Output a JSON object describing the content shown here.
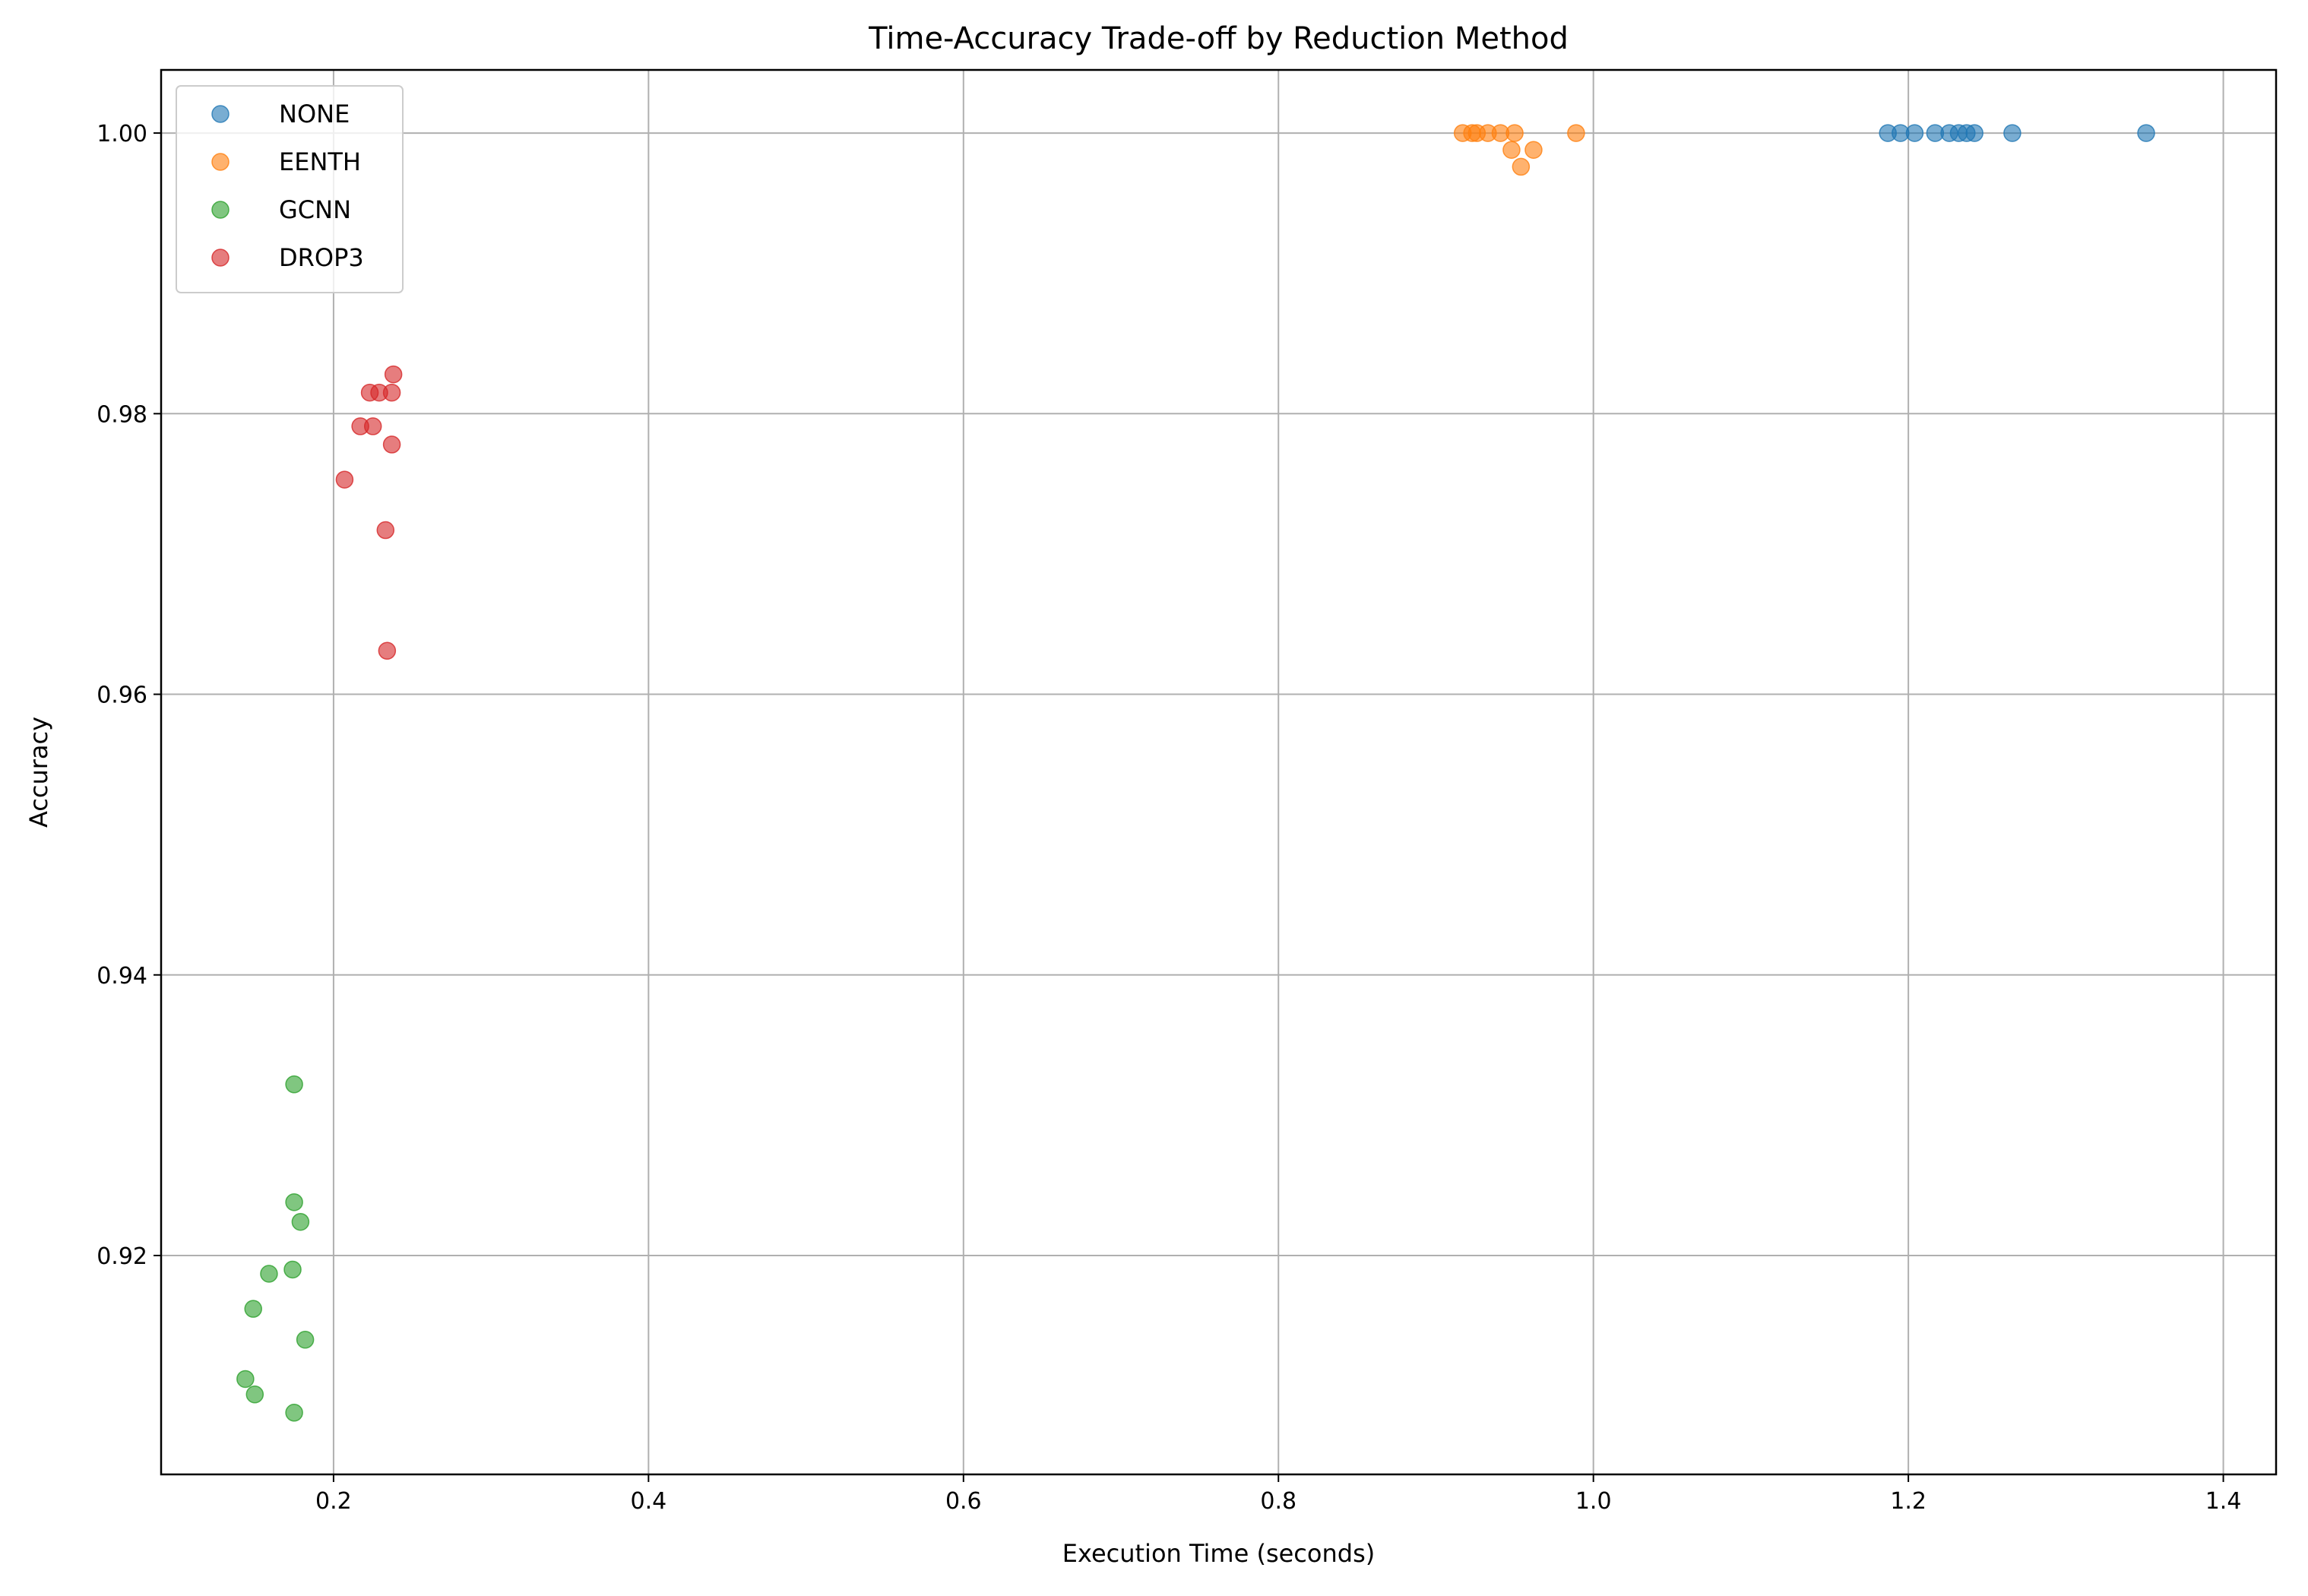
{
  "chart_data": {
    "type": "scatter",
    "title": "Time-Accuracy Trade-off by Reduction Method",
    "xlabel": "Execution Time (seconds)",
    "ylabel": "Accuracy",
    "xlim": [
      0.0905,
      1.4335
    ],
    "ylim": [
      0.9044,
      1.0045
    ],
    "xticks": [
      0.2,
      0.4,
      0.6,
      0.8,
      1.0,
      1.2,
      1.4
    ],
    "xtick_labels": [
      "0.2",
      "0.4",
      "0.6",
      "0.8",
      "1.0",
      "1.2",
      "1.4"
    ],
    "yticks": [
      0.92,
      0.94,
      0.96,
      0.98,
      1.0
    ],
    "ytick_labels": [
      "0.92",
      "0.94",
      "0.96",
      "0.98",
      "1.00"
    ],
    "grid": true,
    "legend_position": "top-left",
    "series": [
      {
        "name": "NONE",
        "color": "#1f77b4",
        "points": [
          {
            "x": 1.187,
            "y": 1.0
          },
          {
            "x": 1.195,
            "y": 1.0
          },
          {
            "x": 1.204,
            "y": 1.0
          },
          {
            "x": 1.217,
            "y": 1.0
          },
          {
            "x": 1.226,
            "y": 1.0
          },
          {
            "x": 1.232,
            "y": 1.0
          },
          {
            "x": 1.237,
            "y": 1.0
          },
          {
            "x": 1.242,
            "y": 1.0
          },
          {
            "x": 1.266,
            "y": 1.0
          },
          {
            "x": 1.351,
            "y": 1.0
          }
        ]
      },
      {
        "name": "EENTH",
        "color": "#ff7f0e",
        "points": [
          {
            "x": 0.917,
            "y": 1.0
          },
          {
            "x": 0.923,
            "y": 1.0
          },
          {
            "x": 0.926,
            "y": 1.0
          },
          {
            "x": 0.933,
            "y": 1.0
          },
          {
            "x": 0.941,
            "y": 1.0
          },
          {
            "x": 0.95,
            "y": 1.0
          },
          {
            "x": 0.948,
            "y": 0.9988
          },
          {
            "x": 0.962,
            "y": 0.9988
          },
          {
            "x": 0.954,
            "y": 0.9976
          },
          {
            "x": 0.989,
            "y": 1.0
          }
        ]
      },
      {
        "name": "GCNN",
        "color": "#2ca02c",
        "points": [
          {
            "x": 0.175,
            "y": 0.9322
          },
          {
            "x": 0.175,
            "y": 0.9238
          },
          {
            "x": 0.179,
            "y": 0.9224
          },
          {
            "x": 0.159,
            "y": 0.9187
          },
          {
            "x": 0.174,
            "y": 0.919
          },
          {
            "x": 0.149,
            "y": 0.9162
          },
          {
            "x": 0.182,
            "y": 0.914
          },
          {
            "x": 0.144,
            "y": 0.9112
          },
          {
            "x": 0.15,
            "y": 0.9101
          },
          {
            "x": 0.175,
            "y": 0.9088
          }
        ]
      },
      {
        "name": "DROP3",
        "color": "#d62728",
        "points": [
          {
            "x": 0.238,
            "y": 0.9828
          },
          {
            "x": 0.223,
            "y": 0.9815
          },
          {
            "x": 0.229,
            "y": 0.9815
          },
          {
            "x": 0.237,
            "y": 0.9815
          },
          {
            "x": 0.217,
            "y": 0.9791
          },
          {
            "x": 0.225,
            "y": 0.9791
          },
          {
            "x": 0.237,
            "y": 0.9778
          },
          {
            "x": 0.207,
            "y": 0.9753
          },
          {
            "x": 0.233,
            "y": 0.9717
          },
          {
            "x": 0.234,
            "y": 0.9631
          }
        ]
      }
    ]
  }
}
